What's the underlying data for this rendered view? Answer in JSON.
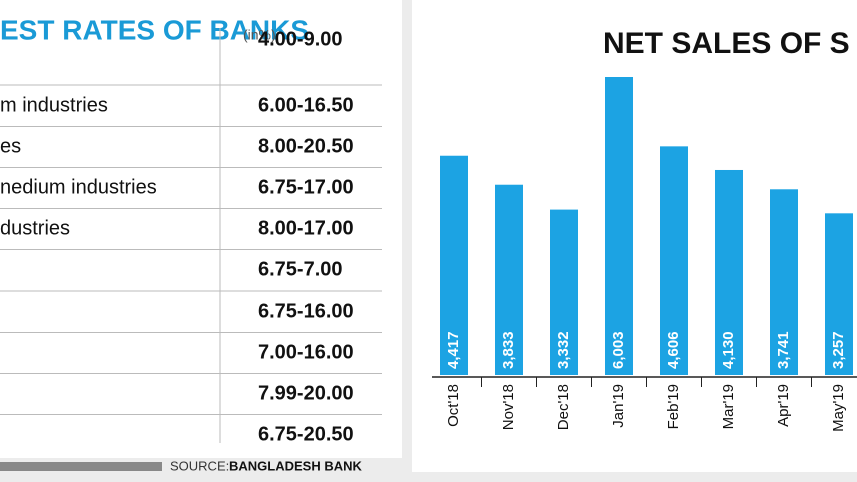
{
  "table": {
    "title": "EST RATES OF BANKS",
    "unit": "(in%)",
    "rows": [
      {
        "rate": "4.00-9.00"
      },
      {
        "label": "m industries",
        "rate": "6.00-16.50"
      },
      {
        "label": "es",
        "rate": "8.00-20.50"
      },
      {
        "label": "nedium industries",
        "rate": "6.75-17.00"
      },
      {
        "label": "dustries",
        "rate": "8.00-17.00"
      },
      {
        "rate": "6.75-7.00"
      },
      {
        "rate": "6.75-16.00"
      },
      {
        "rate": "7.00-16.00"
      },
      {
        "rate": "7.99-20.00"
      },
      {
        "rate": "6.75-20.50"
      }
    ],
    "source_prefix": "SOURCE:",
    "source": "BANGLADESH BANK"
  },
  "chart_data": {
    "type": "bar",
    "title": "NET SALES OF S",
    "categories": [
      "Oct'18",
      "Nov'18",
      "Dec'18",
      "Jan'19",
      "Feb'19",
      "Mar'19",
      "Apr'19",
      "May'19"
    ],
    "values": [
      4417,
      3833,
      3332,
      6003,
      4606,
      4130,
      3741,
      3257
    ],
    "value_labels": [
      "4,417",
      "3,833",
      "3,332",
      "6,003",
      "4,606",
      "4,130",
      "3,741",
      "3,257"
    ],
    "color": "#1ca3e3"
  }
}
